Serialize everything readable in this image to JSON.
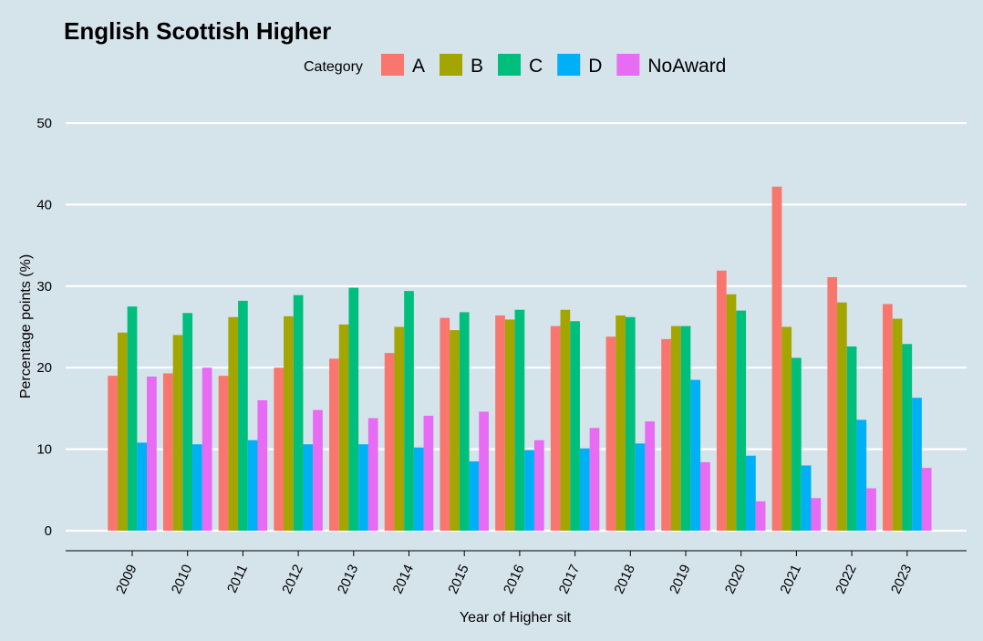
{
  "chart_data": {
    "type": "bar",
    "title": "English Scottish Higher",
    "xlabel": "Year of Higher sit",
    "ylabel": "Percentage points (%)",
    "ylim": [
      0,
      50
    ],
    "yticks": [
      0,
      10,
      20,
      30,
      40,
      50
    ],
    "grid": true,
    "legend": {
      "title": "Category",
      "position": "top"
    },
    "categories": [
      "2009",
      "2010",
      "2011",
      "2012",
      "2013",
      "2014",
      "2015",
      "2016",
      "2017",
      "2018",
      "2019",
      "2020",
      "2021",
      "2022",
      "2023"
    ],
    "series": [
      {
        "name": "A",
        "color": "#F8766D",
        "values": [
          19.0,
          19.3,
          19.0,
          20.0,
          21.1,
          21.8,
          26.1,
          26.4,
          25.1,
          23.8,
          23.5,
          31.9,
          42.2,
          31.1,
          27.8
        ]
      },
      {
        "name": "B",
        "color": "#A3A500",
        "values": [
          24.3,
          24.0,
          26.2,
          26.3,
          25.3,
          25.0,
          24.6,
          25.9,
          27.1,
          26.4,
          25.1,
          29.0,
          25.0,
          28.0,
          26.0
        ]
      },
      {
        "name": "C",
        "color": "#00BF7D",
        "values": [
          27.5,
          26.7,
          28.2,
          28.9,
          29.8,
          29.4,
          26.8,
          27.1,
          25.7,
          26.2,
          25.1,
          27.0,
          21.2,
          22.6,
          22.9
        ]
      },
      {
        "name": "D",
        "color": "#00B0F6",
        "values": [
          10.8,
          10.6,
          11.1,
          10.6,
          10.6,
          10.2,
          8.5,
          9.9,
          10.1,
          10.7,
          18.5,
          9.2,
          8.0,
          13.6,
          16.3
        ]
      },
      {
        "name": "NoAward",
        "color": "#E76BF3",
        "values": [
          18.9,
          20.0,
          16.0,
          14.8,
          13.8,
          14.1,
          14.6,
          11.1,
          12.6,
          13.4,
          8.4,
          3.6,
          4.0,
          5.2,
          7.7
        ]
      }
    ]
  }
}
